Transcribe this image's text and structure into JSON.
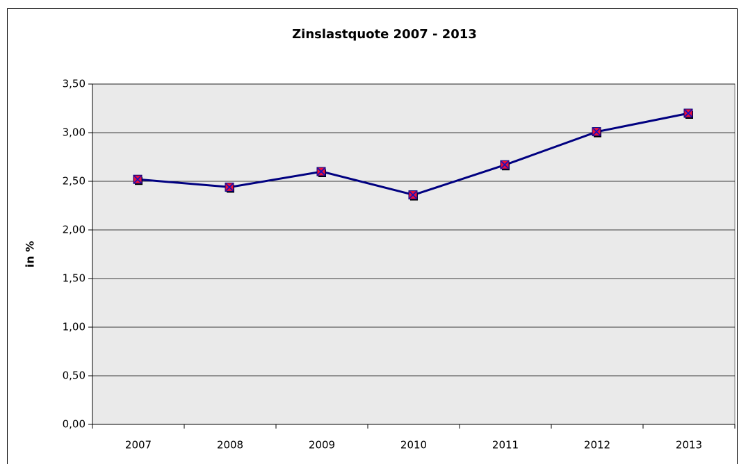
{
  "chart_data": {
    "type": "line",
    "title": "Zinslastquote 2007 - 2013",
    "y_label": "in %",
    "categories": [
      "2007",
      "2008",
      "2009",
      "2010",
      "2011",
      "2012",
      "2013"
    ],
    "series": [
      {
        "color": "#000080",
        "values": [
          2.52,
          2.44,
          2.6,
          2.36,
          2.67,
          3.01,
          3.2
        ]
      }
    ],
    "ylim": [
      0,
      3.5
    ],
    "yticks": [
      {
        "value": 0,
        "label": "0,00"
      },
      {
        "value": 0.5,
        "label": "0,50"
      },
      {
        "value": 1,
        "label": "1,00"
      },
      {
        "value": 1.5,
        "label": "1,50"
      },
      {
        "value": 2,
        "label": "2,00"
      },
      {
        "value": 2.5,
        "label": "2,50"
      },
      {
        "value": 3,
        "label": "3,00"
      },
      {
        "value": 3.5,
        "label": "3,50"
      }
    ],
    "grid": true
  }
}
